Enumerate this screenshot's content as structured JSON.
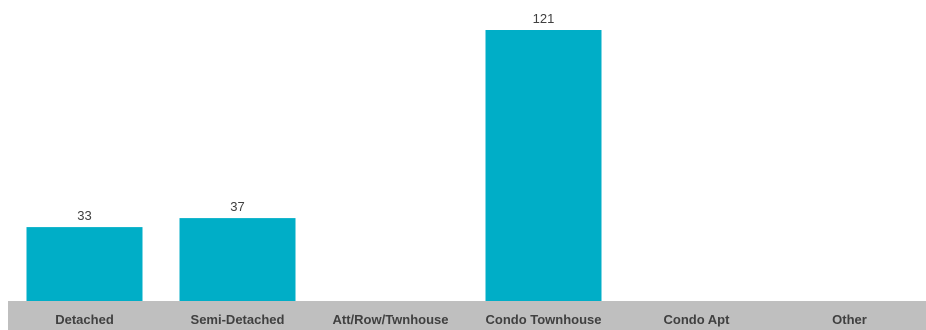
{
  "chart_data": {
    "type": "bar",
    "categories": [
      "Detached",
      "Semi-Detached",
      "Att/Row/Twnhouse",
      "Condo Townhouse",
      "Condo Apt",
      "Other"
    ],
    "values": [
      33,
      37,
      null,
      121,
      null,
      null
    ],
    "data_labels": [
      "33",
      "37",
      "",
      "121",
      "",
      ""
    ],
    "ylim": [
      0,
      121
    ],
    "grid": false,
    "legend": "none",
    "colors": {
      "bar": "#00AEC7",
      "axis_band": "#BFBFBF",
      "text": "#404040"
    }
  }
}
